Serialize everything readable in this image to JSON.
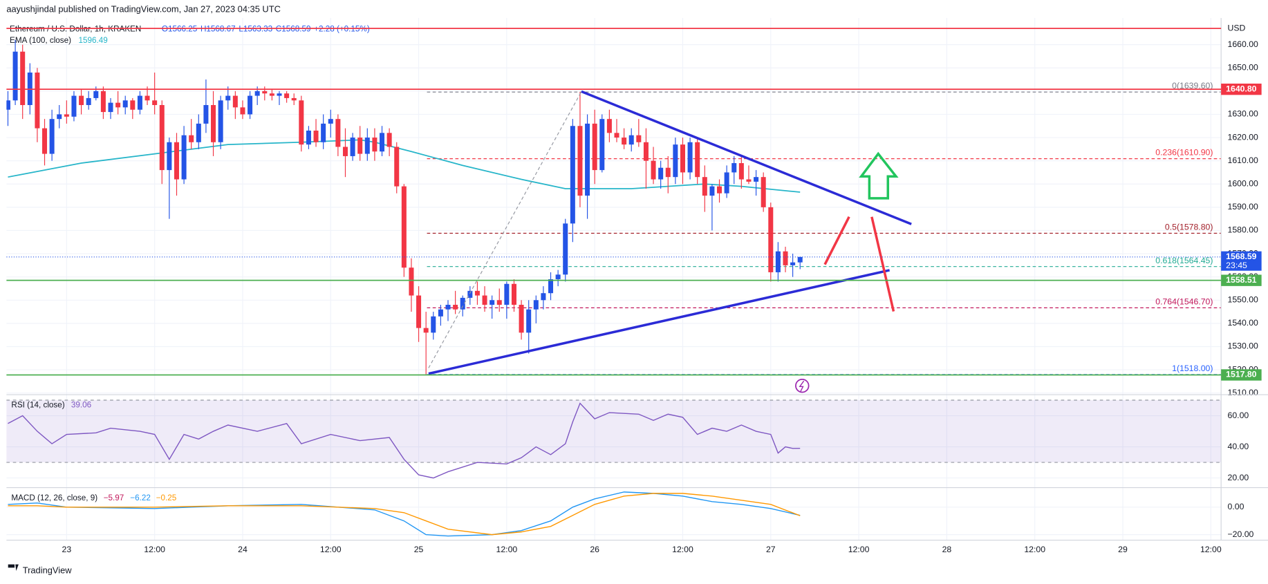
{
  "chart_data": {
    "type": "candlestick",
    "header": "aayushjindal published on TradingView.com, Jan 27, 2023 04:35 UTC",
    "symbol": "Ethereum / U.S. Dollar, 1h, KRAKEN",
    "ohlc_legend": [
      "O1566.25",
      "H1568.67",
      "L1563.33",
      "C1568.59",
      "+2.28 (+0.15%)"
    ],
    "currency": "USD",
    "logo": "TradingView",
    "up_color": "#2454e6",
    "down_color": "#f23645",
    "xlim": [
      -0.2,
      165.4
    ],
    "xticks": [
      {
        "value": 8,
        "label": "23"
      },
      {
        "value": 20,
        "label": "12:00"
      },
      {
        "value": 32,
        "label": "24"
      },
      {
        "value": 44,
        "label": "12:00"
      },
      {
        "value": 56,
        "label": "25"
      },
      {
        "value": 68,
        "label": "12:00"
      },
      {
        "value": 80,
        "label": "26"
      },
      {
        "value": 92,
        "label": "12:00"
      },
      {
        "value": 104,
        "label": "27"
      },
      {
        "value": 116,
        "label": "12:00"
      },
      {
        "value": 128,
        "label": "28"
      },
      {
        "value": 140,
        "label": "12:00"
      },
      {
        "value": 152,
        "label": "29"
      },
      {
        "value": 164,
        "label": "12:00"
      }
    ],
    "ylim": [
      1509.3,
      1671.5
    ],
    "yticks": [
      {
        "value": 1510,
        "label": "1510.00"
      },
      {
        "value": 1520,
        "label": "1520.00"
      },
      {
        "value": 1530,
        "label": "1530.00"
      },
      {
        "value": 1540,
        "label": "1540.00"
      },
      {
        "value": 1550,
        "label": "1550.00"
      },
      {
        "value": 1560,
        "label": "1560.00"
      },
      {
        "value": 1570,
        "label": "1570.00"
      },
      {
        "value": 1580,
        "label": "1580.00"
      },
      {
        "value": 1590,
        "label": "1590.00"
      },
      {
        "value": 1600,
        "label": "1600.00"
      },
      {
        "value": 1610,
        "label": "1610.00"
      },
      {
        "value": 1620,
        "label": "1620.00"
      },
      {
        "value": 1630,
        "label": "1630.00"
      },
      {
        "value": 1640,
        "label": "1640.00"
      },
      {
        "value": 1650,
        "label": "1650.00"
      },
      {
        "value": 1660,
        "label": "1660.00"
      }
    ],
    "grid": true,
    "candles": [
      [
        1632,
        1640,
        1625,
        1636
      ],
      [
        1636,
        1662,
        1634,
        1657
      ],
      [
        1657,
        1660,
        1628,
        1634
      ],
      [
        1634,
        1652,
        1630,
        1648
      ],
      [
        1648,
        1650,
        1618,
        1624
      ],
      [
        1624,
        1628,
        1608,
        1613
      ],
      [
        1613,
        1632,
        1610,
        1628
      ],
      [
        1628,
        1634,
        1624,
        1630
      ],
      [
        1630,
        1636,
        1626,
        1629
      ],
      [
        1629,
        1640,
        1627,
        1638
      ],
      [
        1638,
        1641,
        1630,
        1634
      ],
      [
        1634,
        1640,
        1632,
        1637
      ],
      [
        1637,
        1642,
        1636,
        1640
      ],
      [
        1640,
        1642,
        1628,
        1631
      ],
      [
        1631,
        1637,
        1628,
        1635
      ],
      [
        1635,
        1640,
        1630,
        1633
      ],
      [
        1633,
        1638,
        1630,
        1636
      ],
      [
        1636,
        1637,
        1628,
        1632
      ],
      [
        1632,
        1640,
        1630,
        1638
      ],
      [
        1638,
        1642,
        1634,
        1636
      ],
      [
        1636,
        1648,
        1630,
        1634
      ],
      [
        1634,
        1636,
        1600,
        1606
      ],
      [
        1606,
        1620,
        1585,
        1618
      ],
      [
        1618,
        1622,
        1595,
        1602
      ],
      [
        1602,
        1625,
        1600,
        1621
      ],
      [
        1621,
        1628,
        1615,
        1618
      ],
      [
        1618,
        1630,
        1615,
        1626
      ],
      [
        1626,
        1645,
        1622,
        1634
      ],
      [
        1634,
        1640,
        1612,
        1618
      ],
      [
        1618,
        1638,
        1615,
        1636
      ],
      [
        1636,
        1642,
        1632,
        1638
      ],
      [
        1638,
        1640,
        1628,
        1633
      ],
      [
        1633,
        1636,
        1628,
        1630
      ],
      [
        1630,
        1640,
        1628,
        1638
      ],
      [
        1638,
        1642,
        1634,
        1640
      ],
      [
        1640,
        1642,
        1636,
        1639
      ],
      [
        1639,
        1641,
        1636,
        1638
      ],
      [
        1638,
        1640,
        1634,
        1639
      ],
      [
        1639,
        1640,
        1635,
        1637
      ],
      [
        1637,
        1639,
        1634,
        1636
      ],
      [
        1636,
        1638,
        1614,
        1617
      ],
      [
        1617,
        1625,
        1615,
        1623
      ],
      [
        1623,
        1628,
        1616,
        1618
      ],
      [
        1618,
        1630,
        1615,
        1626
      ],
      [
        1626,
        1632,
        1620,
        1628
      ],
      [
        1628,
        1630,
        1612,
        1616
      ],
      [
        1616,
        1624,
        1603,
        1612
      ],
      [
        1612,
        1622,
        1610,
        1620
      ],
      [
        1620,
        1625,
        1610,
        1613
      ],
      [
        1613,
        1624,
        1610,
        1620
      ],
      [
        1620,
        1624,
        1610,
        1614
      ],
      [
        1614,
        1625,
        1612,
        1622
      ],
      [
        1622,
        1624,
        1612,
        1616
      ],
      [
        1616,
        1618,
        1596,
        1599
      ],
      [
        1599,
        1600,
        1560,
        1564
      ],
      [
        1564,
        1568,
        1545,
        1552
      ],
      [
        1552,
        1556,
        1532,
        1538
      ],
      [
        1538,
        1545,
        1518,
        1536
      ],
      [
        1536,
        1545,
        1533,
        1543
      ],
      [
        1543,
        1548,
        1539,
        1546
      ],
      [
        1546,
        1550,
        1541,
        1548
      ],
      [
        1548,
        1554,
        1544,
        1546
      ],
      [
        1546,
        1552,
        1543,
        1551
      ],
      [
        1551,
        1556,
        1548,
        1554
      ],
      [
        1554,
        1558,
        1548,
        1552
      ],
      [
        1552,
        1556,
        1545,
        1548
      ],
      [
        1548,
        1552,
        1542,
        1550
      ],
      [
        1550,
        1555,
        1545,
        1548
      ],
      [
        1548,
        1558,
        1542,
        1557
      ],
      [
        1557,
        1559,
        1545,
        1548
      ],
      [
        1548,
        1550,
        1533,
        1536
      ],
      [
        1536,
        1550,
        1527,
        1546
      ],
      [
        1546,
        1552,
        1540,
        1550
      ],
      [
        1550,
        1556,
        1546,
        1553
      ],
      [
        1553,
        1562,
        1550,
        1559
      ],
      [
        1559,
        1563,
        1556,
        1561
      ],
      [
        1561,
        1585,
        1558,
        1583
      ],
      [
        1583,
        1628,
        1575,
        1625
      ],
      [
        1625,
        1639.6,
        1590,
        1595
      ],
      [
        1595,
        1630,
        1585,
        1626
      ],
      [
        1626,
        1632,
        1600,
        1606
      ],
      [
        1606,
        1630,
        1605,
        1628
      ],
      [
        1628,
        1632,
        1618,
        1622
      ],
      [
        1622,
        1628,
        1618,
        1620
      ],
      [
        1620,
        1624,
        1615,
        1617
      ],
      [
        1617,
        1624,
        1614,
        1621
      ],
      [
        1621,
        1628,
        1616,
        1618
      ],
      [
        1618,
        1624,
        1598,
        1610
      ],
      [
        1610,
        1616,
        1600,
        1602
      ],
      [
        1602,
        1610,
        1598,
        1607
      ],
      [
        1607,
        1612,
        1596,
        1603
      ],
      [
        1603,
        1620,
        1600,
        1617
      ],
      [
        1617,
        1620,
        1600,
        1605
      ],
      [
        1605,
        1620,
        1602,
        1618
      ],
      [
        1618,
        1620,
        1600,
        1603
      ],
      [
        1603,
        1608,
        1588,
        1595
      ],
      [
        1595,
        1600,
        1580,
        1599
      ],
      [
        1599,
        1602,
        1592,
        1596
      ],
      [
        1596,
        1608,
        1594,
        1605
      ],
      [
        1605,
        1612,
        1600,
        1609
      ],
      [
        1609,
        1612,
        1598,
        1602
      ],
      [
        1602,
        1608,
        1600,
        1601
      ],
      [
        1601,
        1606,
        1595,
        1603
      ],
      [
        1603,
        1605,
        1588,
        1590
      ],
      [
        1590,
        1592,
        1558,
        1562
      ],
      [
        1562,
        1575,
        1558,
        1571
      ],
      [
        1571,
        1573,
        1562,
        1565
      ],
      [
        1565,
        1570,
        1560,
        1566.25
      ],
      [
        1566.25,
        1568.67,
        1563.33,
        1568.59
      ]
    ],
    "ema": {
      "name": "EMA (100, close)",
      "value_label": "1596.49",
      "color": "#26b5c9",
      "x": [
        0,
        10,
        20,
        30,
        40,
        48,
        50,
        55,
        62,
        70,
        76,
        85,
        95,
        100,
        108
      ],
      "values": [
        1603,
        1609,
        1613,
        1617,
        1618,
        1619,
        1618,
        1614,
        1608,
        1602,
        1598,
        1598,
        1600,
        1599,
        1596.49
      ]
    },
    "fib": [
      {
        "label": "0(1639.60)",
        "value": 1639.6,
        "color": "#787b86"
      },
      {
        "label": "0.236(1610.90)",
        "value": 1610.9,
        "color": "#f23645"
      },
      {
        "label": "0.5(1578.80)",
        "value": 1578.8,
        "color": "#a3202a"
      },
      {
        "label": "0.618(1564.45)",
        "value": 1564.45,
        "color": "#22ab94"
      },
      {
        "label": "0.764(1546.70)",
        "value": 1546.7,
        "color": "#c2185b"
      },
      {
        "label": "1(1518.00)",
        "value": 1518,
        "color": "#2962ff"
      }
    ],
    "price_lines": [
      {
        "value": 1667,
        "color": "#f23645"
      },
      {
        "value": 1640.8,
        "label": "1640.80",
        "color": "#f23645"
      },
      {
        "value": 1558.51,
        "label": "1558.51",
        "color": "#4caf50"
      },
      {
        "value": 1517.8,
        "label": "1517.80",
        "color": "#4caf50"
      }
    ],
    "last_price": {
      "value": 1568.59,
      "label": "1568.59",
      "countdown": "23:45",
      "color": "#2454e6"
    },
    "rsi": {
      "name": "RSI (14, close)",
      "value_label": "39.06",
      "color": "#7e57c2",
      "ylim": [
        13.8,
        72.5
      ],
      "yticks": [
        {
          "value": 20,
          "label": "20.00"
        },
        {
          "value": 40,
          "label": "40.00"
        },
        {
          "value": 60,
          "label": "60.00"
        }
      ],
      "bands": [
        70,
        30
      ],
      "x": [
        0,
        2,
        4,
        6,
        8,
        12,
        14,
        18,
        20,
        22,
        24,
        26,
        28,
        30,
        34,
        38,
        40,
        44,
        48,
        52,
        54,
        56,
        58,
        60,
        64,
        68,
        70,
        72,
        74,
        76,
        77,
        78,
        80,
        82,
        86,
        88,
        90,
        92,
        94,
        96,
        98,
        100,
        102,
        104,
        105,
        106,
        107,
        108
      ],
      "values": [
        55,
        60,
        50,
        42,
        48,
        49,
        52,
        50,
        48,
        32,
        48,
        45,
        50,
        54,
        50,
        55,
        42,
        48,
        44,
        46,
        32,
        22,
        20,
        24,
        30,
        29,
        33,
        40,
        35,
        42,
        56,
        68,
        58,
        62,
        61,
        57,
        61,
        59,
        48,
        52,
        50,
        54,
        50,
        48,
        36,
        40,
        39,
        39.06
      ]
    },
    "macd": {
      "name": "MACD (12, 26, close, 9)",
      "readouts": [
        "−5.97",
        "−6.22",
        "−0.25"
      ],
      "macd_color": "#2196f3",
      "signal_color": "#ff9800",
      "ylim": [
        -24,
        13
      ],
      "yticks": [
        {
          "value": -20,
          "label": "−20.00"
        },
        {
          "value": 0,
          "label": "0.00"
        }
      ],
      "x": [
        0,
        4,
        8,
        20,
        30,
        40,
        50,
        54,
        57,
        60,
        66,
        70,
        74,
        77,
        80,
        84,
        88,
        92,
        96,
        100,
        104,
        108
      ],
      "macd": [
        2,
        3,
        0,
        -1,
        1,
        2,
        -2,
        -10,
        -20,
        -21,
        -20,
        -17,
        -10,
        0,
        6,
        11,
        10,
        8,
        4,
        2,
        -1,
        -5.97
      ],
      "signal": [
        1,
        1,
        0,
        0,
        1,
        1,
        -1,
        -4,
        -10,
        -16,
        -20,
        -18,
        -14,
        -6,
        2,
        8,
        10,
        10,
        8,
        5,
        2,
        -6.22
      ]
    }
  }
}
